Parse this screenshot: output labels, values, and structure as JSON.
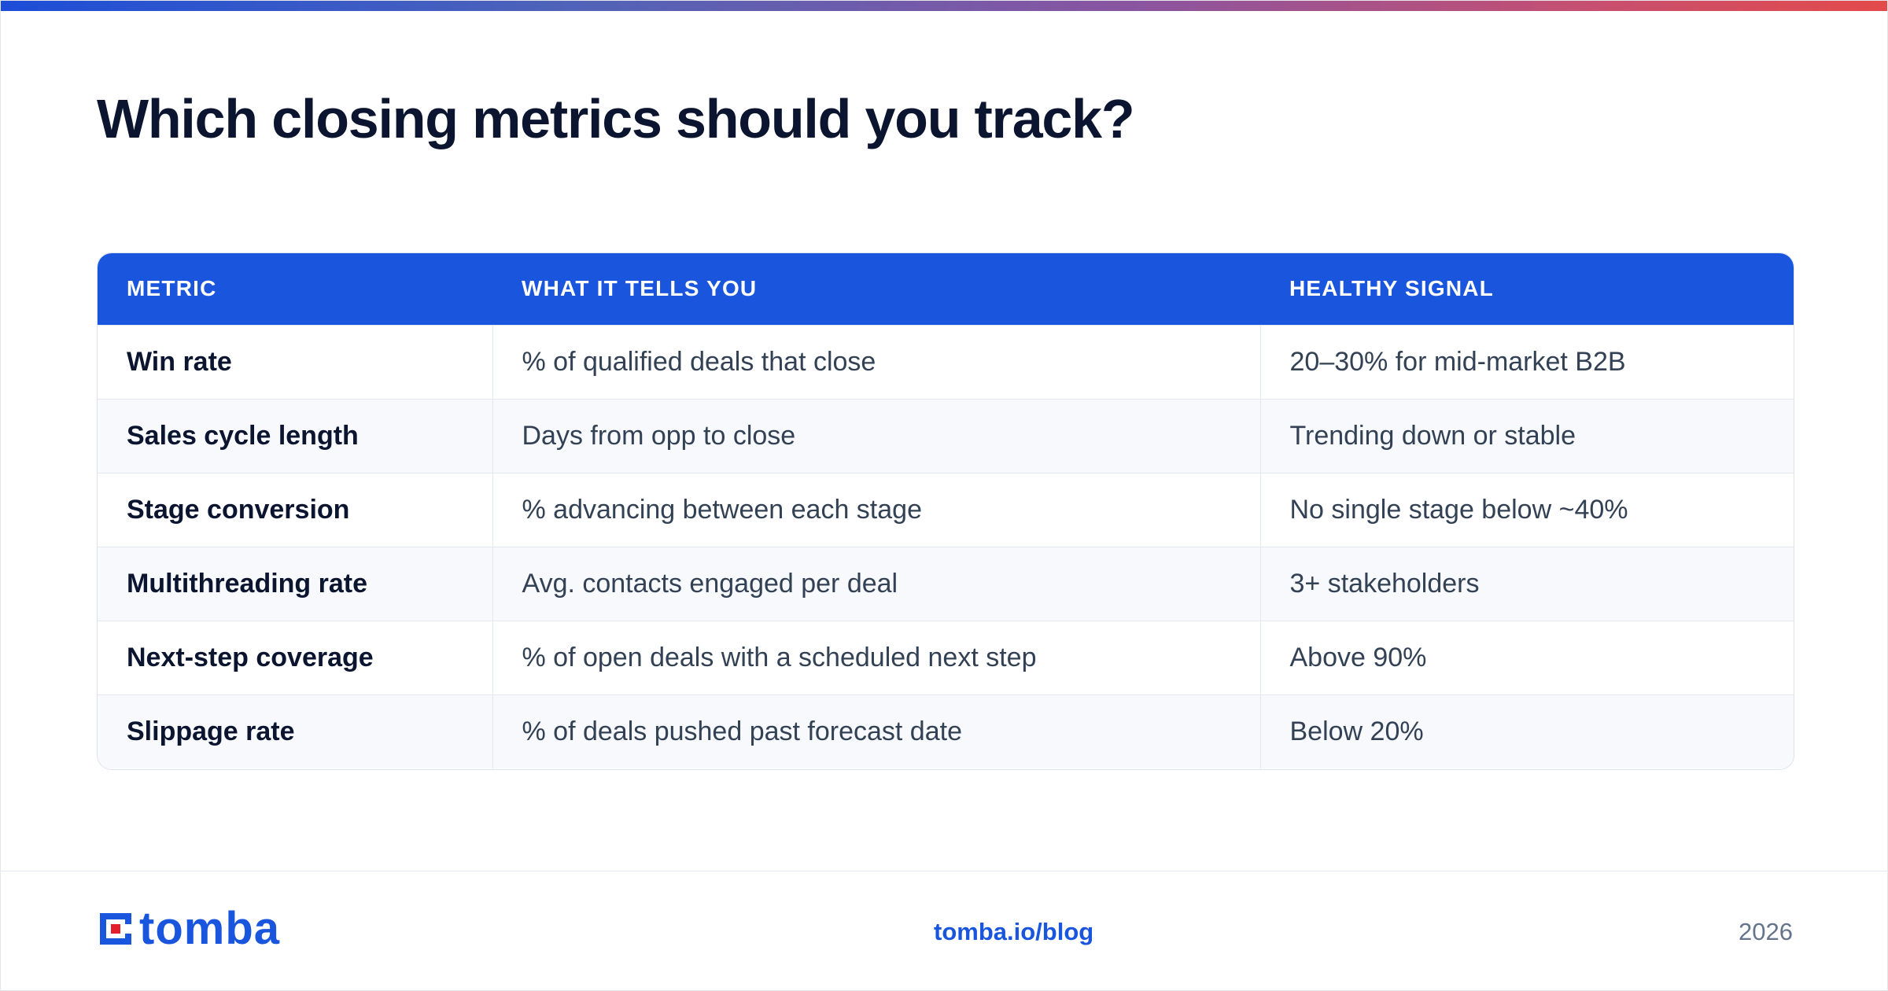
{
  "title": "Which closing metrics should you track?",
  "table": {
    "headers": [
      "METRIC",
      "WHAT IT TELLS YOU",
      "HEALTHY SIGNAL"
    ],
    "rows": [
      [
        "Win rate",
        "% of qualified deals that close",
        "20–30% for mid-market B2B"
      ],
      [
        "Sales cycle length",
        "Days from opp to close",
        "Trending down or stable"
      ],
      [
        "Stage conversion",
        "% advancing between each stage",
        "No single stage below ~40%"
      ],
      [
        "Multithreading rate",
        "Avg. contacts engaged per deal",
        "3+ stakeholders"
      ],
      [
        "Next-step coverage",
        "% of open deals with a scheduled next step",
        "Above 90%"
      ],
      [
        "Slippage rate",
        "% of deals pushed past forecast date",
        "Below 20%"
      ]
    ]
  },
  "footer": {
    "logo_text": "tomba",
    "logo_icon": "tomba-logo-icon",
    "link": "tomba.io/blog",
    "year": "2026"
  },
  "colors": {
    "accent": "#1a55dd",
    "logo_red": "#e11d2e",
    "gradient_start": "#1d4ed8",
    "gradient_end": "#e34a4a"
  }
}
